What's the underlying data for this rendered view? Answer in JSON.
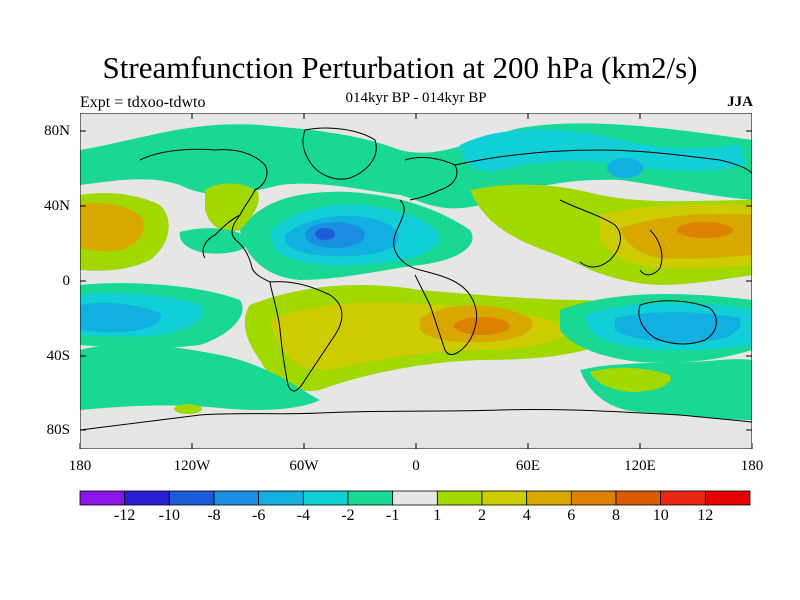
{
  "title": "Streamfunction Perturbation at 200 hPa (km2/s)",
  "subtitle": "014kyr BP - 014kyr BP",
  "left_label": "Expt = tdxoo-tdwto",
  "right_label": "JJA",
  "y_axis_ticks": [
    "80N",
    "40N",
    "0",
    "40S",
    "80S"
  ],
  "x_axis_ticks": [
    "180",
    "120W",
    "60W",
    "0",
    "60E",
    "120E",
    "180"
  ],
  "colorbar": {
    "labels": [
      "-12",
      "-10",
      "-8",
      "-6",
      "-4",
      "-2",
      "-1",
      "1",
      "2",
      "4",
      "6",
      "8",
      "10",
      "12"
    ],
    "colors": [
      "#8a15e6",
      "#2b1fd6",
      "#1e5bd8",
      "#1a8ee0",
      "#12b0e0",
      "#10cfd6",
      "#18d894",
      "#e6e6e6",
      "#a0d800",
      "#cccc00",
      "#d8a800",
      "#dc8200",
      "#dc5a00",
      "#e62814",
      "#e60000"
    ]
  },
  "map_colors": {
    "neutral": "#e6e6e6",
    "coast": "#000000",
    "frame": "#000000"
  }
}
